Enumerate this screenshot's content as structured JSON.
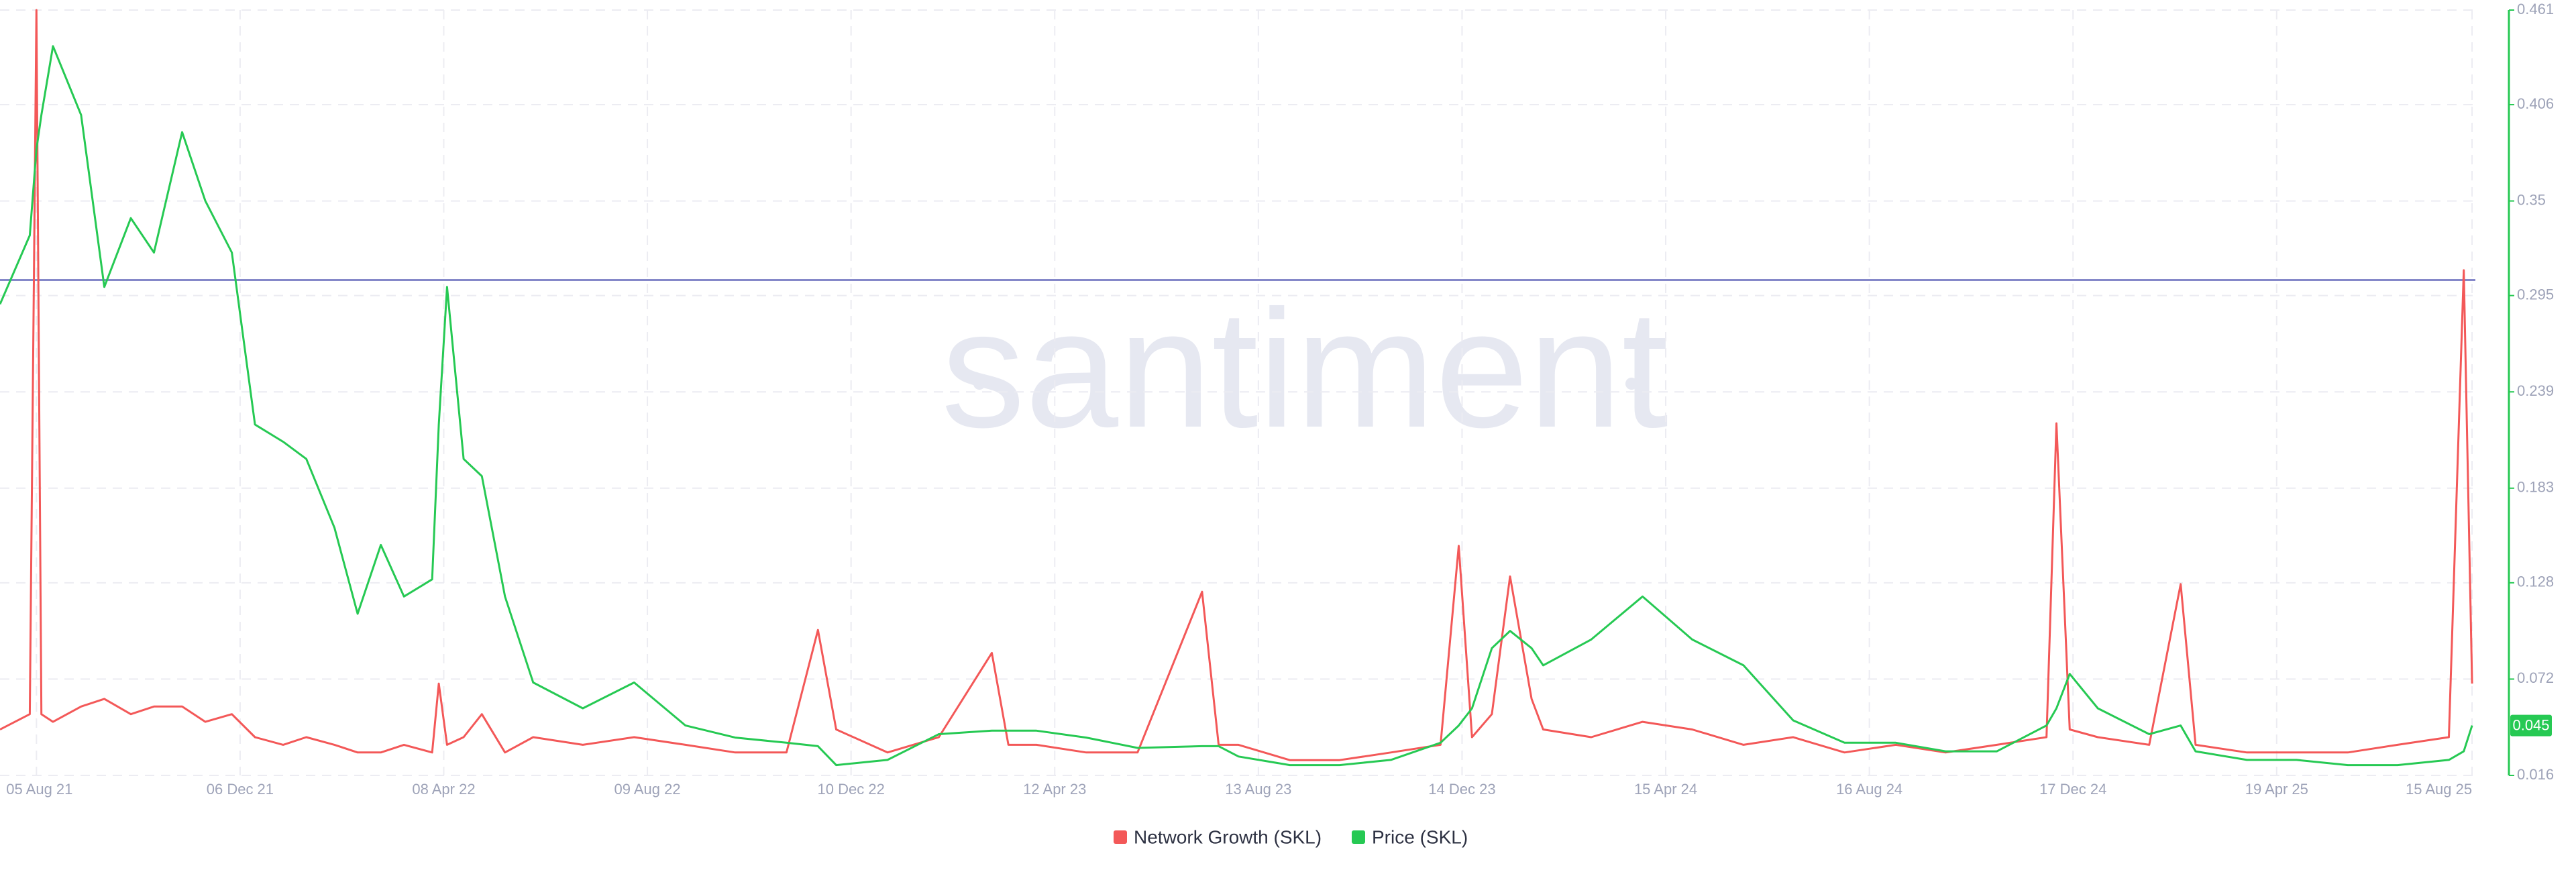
{
  "chart_data": {
    "type": "line",
    "watermark": "santiment",
    "x": [
      "2021-07-14",
      "2021-08-01",
      "2021-08-05",
      "2021-08-08",
      "2021-08-15",
      "2021-09-01",
      "2021-09-15",
      "2021-10-01",
      "2021-10-15",
      "2021-11-01",
      "2021-11-15",
      "2021-12-01",
      "2021-12-15",
      "2022-01-01",
      "2022-01-15",
      "2022-02-01",
      "2022-02-15",
      "2022-03-01",
      "2022-03-15",
      "2022-04-01",
      "2022-04-05",
      "2022-04-10",
      "2022-04-20",
      "2022-05-01",
      "2022-05-15",
      "2022-06-01",
      "2022-07-01",
      "2022-08-01",
      "2022-09-01",
      "2022-10-01",
      "2022-11-01",
      "2022-11-20",
      "2022-12-01",
      "2023-01-01",
      "2023-02-01",
      "2023-03-05",
      "2023-03-15",
      "2023-04-01",
      "2023-05-01",
      "2023-06-01",
      "2023-07-10",
      "2023-07-20",
      "2023-08-01",
      "2023-09-01",
      "2023-10-01",
      "2023-11-01",
      "2023-12-01",
      "2023-12-12",
      "2023-12-20",
      "2024-01-01",
      "2024-01-12",
      "2024-01-25",
      "2024-02-01",
      "2024-03-01",
      "2024-04-01",
      "2024-05-01",
      "2024-06-01",
      "2024-07-01",
      "2024-08-01",
      "2024-09-01",
      "2024-10-01",
      "2024-11-01",
      "2024-12-01",
      "2024-12-07",
      "2024-12-15",
      "2025-01-01",
      "2025-02-01",
      "2025-02-20",
      "2025-03-01",
      "2025-04-01",
      "2025-05-01",
      "2025-06-01",
      "2025-07-01",
      "2025-08-01",
      "2025-08-10",
      "2025-08-15"
    ],
    "xlim": [
      "2021-07-14",
      "2025-08-17"
    ],
    "xticks": [
      {
        "value": "2021-08-05",
        "label": "05 Aug 21"
      },
      {
        "value": "2021-12-06",
        "label": "06 Dec 21"
      },
      {
        "value": "2022-04-08",
        "label": "08 Apr 22"
      },
      {
        "value": "2022-08-09",
        "label": "09 Aug 22"
      },
      {
        "value": "2022-12-10",
        "label": "10 Dec 22"
      },
      {
        "value": "2023-04-12",
        "label": "12 Apr 23"
      },
      {
        "value": "2023-08-13",
        "label": "13 Aug 23"
      },
      {
        "value": "2023-12-14",
        "label": "14 Dec 23"
      },
      {
        "value": "2024-04-15",
        "label": "15 Apr 24"
      },
      {
        "value": "2024-08-16",
        "label": "16 Aug 24"
      },
      {
        "value": "2024-12-17",
        "label": "17 Dec 24"
      },
      {
        "value": "2025-04-19",
        "label": "19 Apr 25"
      },
      {
        "value": "2025-08-15",
        "label": "15 Aug 25"
      }
    ],
    "ylim": [
      0.016,
      0.461
    ],
    "yticks": [
      0.016,
      0.072,
      0.128,
      0.183,
      0.239,
      0.295,
      0.35,
      0.406,
      0.461
    ],
    "y2lim": [
      0,
      100
    ],
    "grid": true,
    "hline": {
      "value": 0.304,
      "color": "#8588c9"
    },
    "series": [
      {
        "name": "Network Growth (SKL)",
        "color": "#f35858",
        "axis": "y2",
        "values": [
          6,
          8,
          100,
          8,
          7,
          9,
          10,
          8,
          9,
          9,
          7,
          8,
          5,
          4,
          5,
          4,
          3,
          3,
          4,
          3,
          12,
          4,
          5,
          8,
          3,
          5,
          4,
          5,
          4,
          3,
          3,
          19,
          6,
          3,
          5,
          16,
          4,
          4,
          3,
          3,
          24,
          4,
          4,
          2,
          2,
          3,
          4,
          30,
          5,
          8,
          26,
          10,
          6,
          5,
          7,
          6,
          4,
          5,
          3,
          4,
          3,
          4,
          5,
          46,
          6,
          5,
          4,
          25,
          4,
          3,
          3,
          3,
          4,
          5,
          66,
          12
        ]
      },
      {
        "name": "Price (SKL)",
        "color": "#26c953",
        "values": [
          0.29,
          0.33,
          0.38,
          0.4,
          0.44,
          0.4,
          0.3,
          0.34,
          0.32,
          0.39,
          0.35,
          0.32,
          0.22,
          0.21,
          0.2,
          0.16,
          0.11,
          0.15,
          0.12,
          0.13,
          0.22,
          0.3,
          0.2,
          0.19,
          0.12,
          0.07,
          0.055,
          0.07,
          0.045,
          0.038,
          0.035,
          0.033,
          0.022,
          0.025,
          0.04,
          0.042,
          0.042,
          0.042,
          0.038,
          0.032,
          0.033,
          0.033,
          0.027,
          0.022,
          0.022,
          0.025,
          0.035,
          0.045,
          0.055,
          0.09,
          0.1,
          0.09,
          0.08,
          0.095,
          0.12,
          0.095,
          0.08,
          0.048,
          0.035,
          0.035,
          0.03,
          0.03,
          0.045,
          0.055,
          0.075,
          0.055,
          0.04,
          0.045,
          0.03,
          0.025,
          0.025,
          0.022,
          0.022,
          0.025,
          0.03,
          0.045
        ]
      }
    ]
  }
}
